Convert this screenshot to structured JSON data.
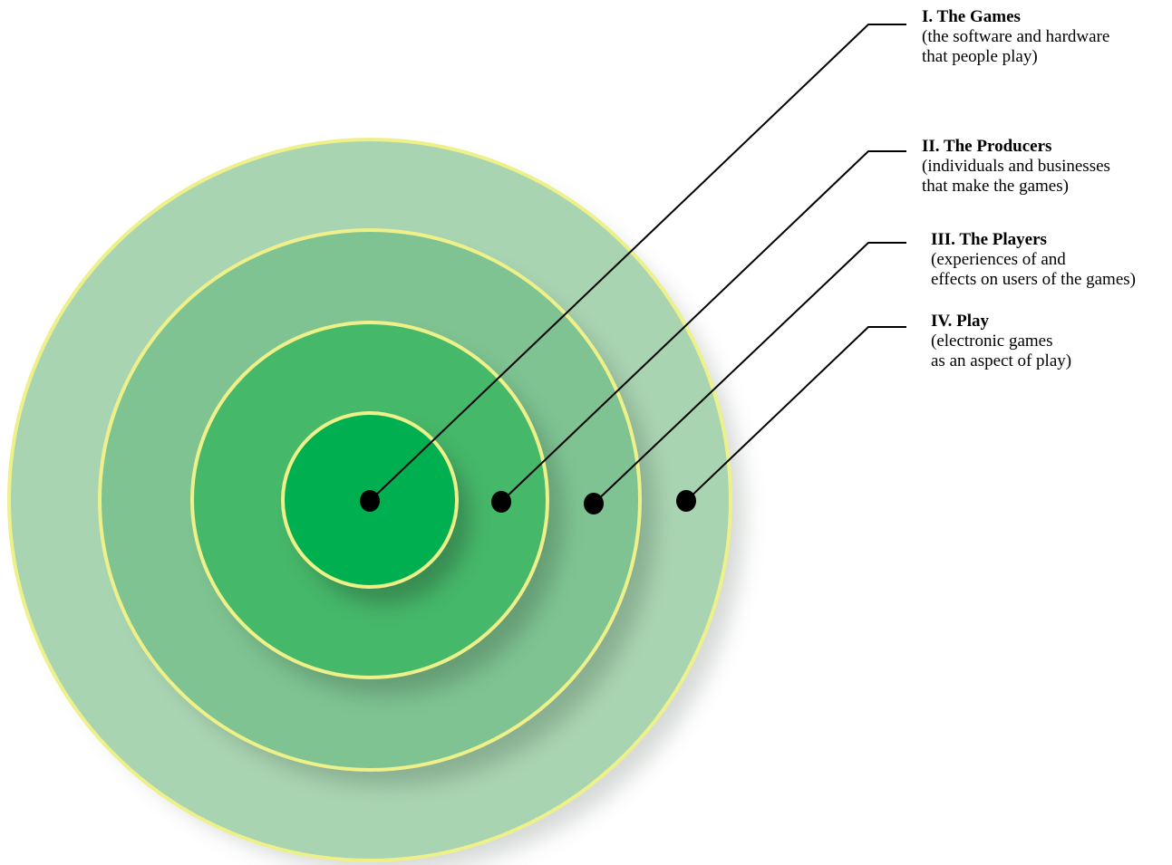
{
  "colors": {
    "ring_1": "#00b050",
    "ring_2": "#46b86a",
    "ring_3": "#7ec391",
    "ring_4": "#a9d4b2",
    "ring_stroke": "#eef08a",
    "leader": "#000000"
  },
  "layers": [
    {
      "id": "games",
      "title": "I. The Games",
      "desc_line1": "(the software and hardware",
      "desc_line2": "that people play)"
    },
    {
      "id": "producers",
      "title": "II. The Producers",
      "desc_line1": "(individuals and businesses",
      "desc_line2": "that make the games)"
    },
    {
      "id": "players",
      "title": "III. The Players",
      "desc_line1": "(experiences of and",
      "desc_line2": "effects on users of the games)"
    },
    {
      "id": "play",
      "title": "IV. Play",
      "desc_line1": "(electronic games",
      "desc_line2": "as an aspect of play)"
    }
  ]
}
